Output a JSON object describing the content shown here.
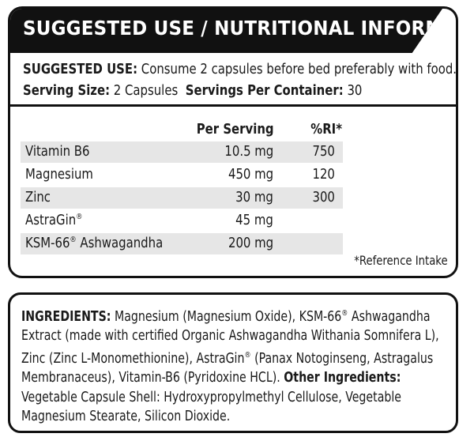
{
  "header": {
    "title": "SUGGESTED USE / NUTRITIONAL INFORMATION"
  },
  "usage": {
    "suggested_label": "SUGGESTED USE:",
    "suggested_text": "Consume 2 capsules before bed preferably with food.",
    "serving_size_label": "Serving Size:",
    "serving_size_value": "2 Capsules",
    "servings_per_container_label": "Servings Per Container:",
    "servings_per_container_value": "30"
  },
  "table": {
    "headers": {
      "per_serving": "Per Serving",
      "ri": "%RI*"
    },
    "rows": [
      {
        "name": "Vitamin B6",
        "reg": "",
        "suffix": "",
        "amount": "10.5 mg",
        "ri": "750",
        "shaded": true
      },
      {
        "name": "Magnesium",
        "reg": "",
        "suffix": "",
        "amount": "450 mg",
        "ri": "120",
        "shaded": false
      },
      {
        "name": "Zinc",
        "reg": "",
        "suffix": "",
        "amount": "30 mg",
        "ri": "300",
        "shaded": true
      },
      {
        "name": "AstraGin",
        "reg": "®",
        "suffix": "",
        "amount": "45 mg",
        "ri": "",
        "shaded": false
      },
      {
        "name": "KSM-66",
        "reg": "®",
        "suffix": " Ashwagandha",
        "amount": "200 mg",
        "ri": "",
        "shaded": true
      }
    ],
    "footnote": "*Reference Intake"
  },
  "ingredients": {
    "label": "INGREDIENTS:",
    "text1": "Magnesium (Magnesium Oxide), KSM-66",
    "reg1": "®",
    "text2": " Ashwagandha Extract (made with certified Organic Ashwagandha Withania Somnifera L), Zinc (Zinc L-Monomethionine), AstraGin",
    "reg2": "®",
    "text3": " (Panax Notoginseng, Astragalus Membranaceus), Vitamin-B6 (Pyridoxine HCL).",
    "other_label": "Other Ingredients:",
    "other_text": "Vegetable Capsule Shell: Hydroxypropylmethyl Cellulose, Vegetable Magnesium Stearate, Silicon Dioxide."
  }
}
